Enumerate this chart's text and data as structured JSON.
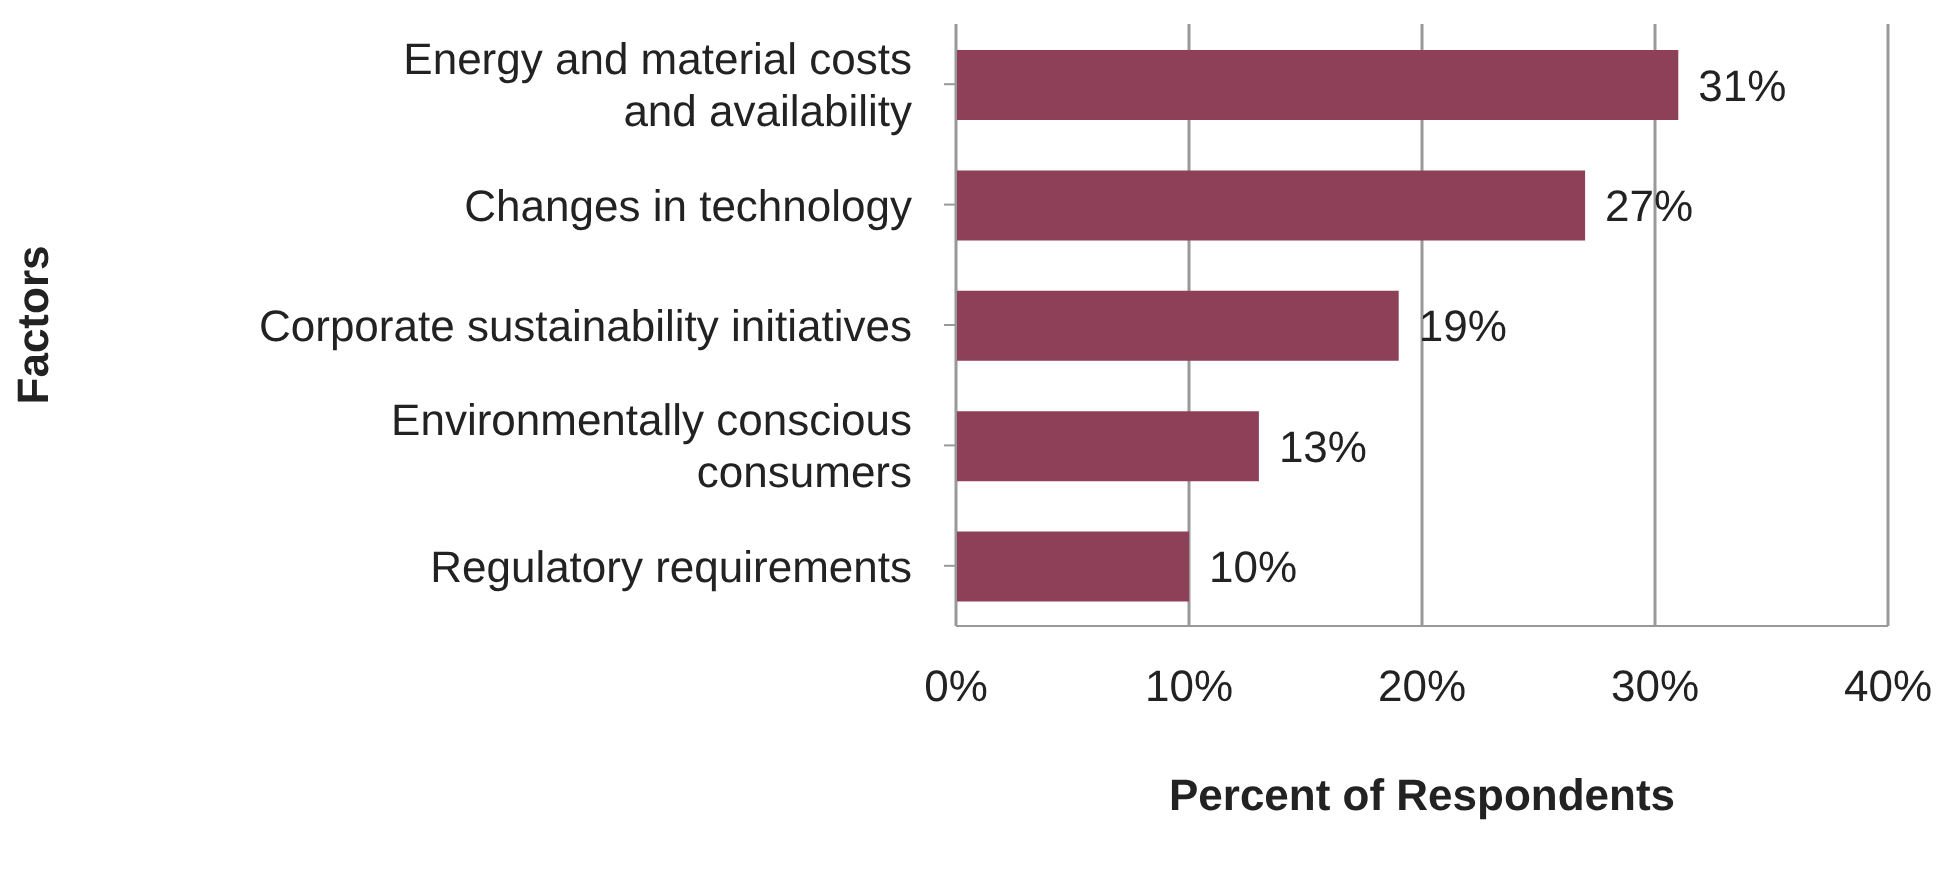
{
  "chart_data": {
    "type": "bar",
    "orientation": "horizontal",
    "categories": [
      "Energy and material costs\nand availability",
      "Changes in technology",
      "Corporate sustainability initiatives",
      "Environmentally conscious\nconsumers",
      "Regulatory requirements"
    ],
    "values": [
      31,
      27,
      19,
      13,
      10
    ],
    "value_labels": [
      "31%",
      "27%",
      "19%",
      "13%",
      "10%"
    ],
    "color": "#8e4058",
    "xlim": [
      0,
      40
    ],
    "xticks": [
      {
        "value": 0,
        "label": "0%"
      },
      {
        "value": 10,
        "label": "10%"
      },
      {
        "value": 20,
        "label": "20%"
      },
      {
        "value": 30,
        "label": "30%"
      },
      {
        "value": 40,
        "label": "40%"
      }
    ],
    "xlabel": "Percent of Respondents",
    "ylabel": "Factors",
    "grid": "x",
    "legend": false
  }
}
